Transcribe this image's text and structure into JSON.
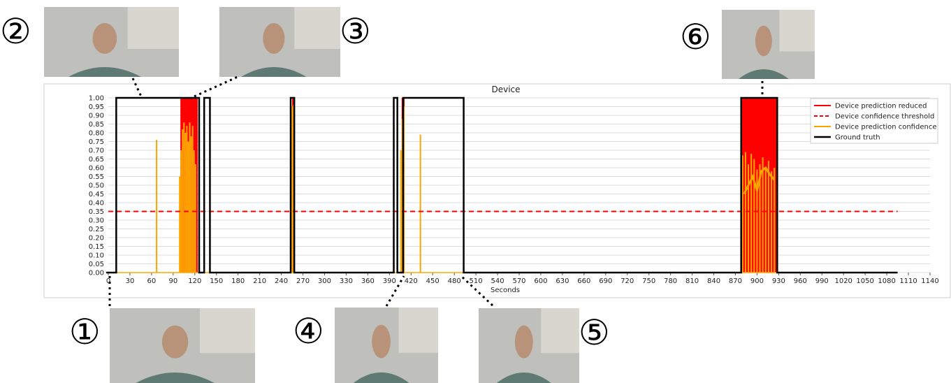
{
  "chart_data": {
    "type": "line",
    "title": "Device",
    "xlabel": "Seconds",
    "ylabel": "",
    "xlim": [
      -15,
      1145
    ],
    "ylim": [
      0,
      1.02
    ],
    "xticks": [
      0,
      30,
      60,
      90,
      120,
      150,
      180,
      210,
      240,
      270,
      300,
      330,
      360,
      390,
      420,
      450,
      480,
      510,
      540,
      570,
      600,
      630,
      660,
      690,
      720,
      750,
      780,
      810,
      840,
      870,
      900,
      930,
      960,
      990,
      1020,
      1050,
      1080,
      1110,
      1140
    ],
    "yticks": [
      0,
      0.05,
      0.1,
      0.15,
      0.2,
      0.25,
      0.3,
      0.35,
      0.4,
      0.45,
      0.5,
      0.55,
      0.6,
      0.65,
      0.7,
      0.75,
      0.8,
      0.85,
      0.9,
      0.95,
      1.0
    ],
    "grid": true,
    "legend_position": "top-right",
    "legend": [
      "Device prediction reduced",
      "Device confidence threshold",
      "Device prediction confidence",
      "Ground truth"
    ],
    "colors": {
      "prediction_reduced": "#ff0000",
      "threshold": "#ff0000",
      "confidence": "#ffa500",
      "ground_truth": "#000000"
    },
    "threshold": {
      "value": 0.35,
      "x": [
        0,
        1095
      ]
    },
    "prediction_reduced_intervals": [
      [
        100,
        124
      ],
      [
        255,
        258
      ],
      [
        407,
        411
      ],
      [
        878,
        928
      ]
    ],
    "confidence_spikes": [
      [
        67,
        0.76
      ],
      [
        99,
        0.55
      ],
      [
        101,
        0.7
      ],
      [
        103,
        0.82
      ],
      [
        105,
        0.86
      ],
      [
        107,
        0.8
      ],
      [
        109,
        0.84
      ],
      [
        111,
        0.75
      ],
      [
        113,
        0.86
      ],
      [
        115,
        0.78
      ],
      [
        117,
        0.84
      ],
      [
        119,
        0.7
      ],
      [
        121,
        0.62
      ],
      [
        255,
        0.95
      ],
      [
        257,
        0.96
      ],
      [
        406,
        0.7
      ],
      [
        408,
        0.88
      ],
      [
        410,
        0.95
      ],
      [
        433,
        0.79
      ],
      [
        880,
        0.67
      ],
      [
        884,
        0.69
      ],
      [
        888,
        0.62
      ],
      [
        892,
        0.68
      ],
      [
        896,
        0.65
      ],
      [
        900,
        0.59
      ],
      [
        904,
        0.62
      ],
      [
        908,
        0.66
      ],
      [
        912,
        0.6
      ],
      [
        916,
        0.64
      ],
      [
        920,
        0.58
      ],
      [
        924,
        0.6
      ]
    ],
    "confidence_band": [
      [
        882,
        0.45
      ],
      [
        888,
        0.5
      ],
      [
        894,
        0.55
      ],
      [
        900,
        0.47
      ],
      [
        906,
        0.58
      ],
      [
        912,
        0.6
      ],
      [
        918,
        0.56
      ],
      [
        924,
        0.53
      ]
    ],
    "ground_truth_intervals": [
      [
        11,
        126
      ],
      [
        133,
        141
      ],
      [
        253,
        258
      ],
      [
        396,
        401
      ],
      [
        409,
        493
      ],
      [
        878,
        928
      ]
    ],
    "ground_truth_x_end": 1095
  },
  "markers": [
    "②",
    "③",
    "⑥",
    "①",
    "④",
    "⑤"
  ]
}
